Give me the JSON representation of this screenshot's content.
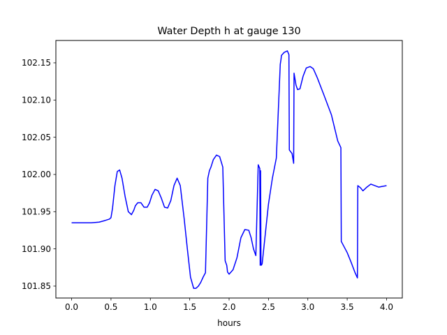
{
  "chart_data": {
    "type": "line",
    "title": "Water Depth h at gauge 130",
    "xlabel": "hours",
    "ylabel": "",
    "xlim": [
      -0.2,
      4.2
    ],
    "ylim": [
      101.834,
      102.18
    ],
    "grid": false,
    "line_color": "#0000ff",
    "x_ticks": [
      {
        "value": 0.0,
        "label": "0.0"
      },
      {
        "value": 0.5,
        "label": "0.5"
      },
      {
        "value": 1.0,
        "label": "1.0"
      },
      {
        "value": 1.5,
        "label": "1.5"
      },
      {
        "value": 2.0,
        "label": "2.0"
      },
      {
        "value": 2.5,
        "label": "2.5"
      },
      {
        "value": 3.0,
        "label": "3.0"
      },
      {
        "value": 3.5,
        "label": "3.5"
      },
      {
        "value": 4.0,
        "label": "4.0"
      }
    ],
    "y_ticks": [
      {
        "value": 101.85,
        "label": "101.85"
      },
      {
        "value": 101.9,
        "label": "101.90"
      },
      {
        "value": 101.95,
        "label": "101.95"
      },
      {
        "value": 102.0,
        "label": "102.00"
      },
      {
        "value": 102.05,
        "label": "102.05"
      },
      {
        "value": 102.1,
        "label": "102.10"
      },
      {
        "value": 102.15,
        "label": "102.15"
      }
    ],
    "series": [
      {
        "x": [
          0.0,
          0.1,
          0.25,
          0.35,
          0.42,
          0.48,
          0.5,
          0.52,
          0.55,
          0.58,
          0.61,
          0.64,
          0.68,
          0.72,
          0.76,
          0.79,
          0.81,
          0.84,
          0.88,
          0.92,
          0.96,
          0.99,
          1.02,
          1.06,
          1.1,
          1.14,
          1.18,
          1.22,
          1.26,
          1.3,
          1.34,
          1.38,
          1.43,
          1.47,
          1.51,
          1.55,
          1.58,
          1.61,
          1.64,
          1.67,
          1.7,
          1.73,
          1.74,
          1.75,
          1.77,
          1.8,
          1.84,
          1.88,
          1.92,
          1.95,
          1.97,
          1.975,
          1.98,
          2.0,
          2.05,
          2.1,
          2.15,
          2.2,
          2.25,
          2.28,
          2.31,
          2.34,
          2.37,
          2.39,
          2.395,
          2.4,
          2.405,
          2.41,
          2.42,
          2.45,
          2.5,
          2.55,
          2.6,
          2.65,
          2.66,
          2.665,
          2.7,
          2.74,
          2.76,
          2.765,
          2.8,
          2.82,
          2.825,
          2.85,
          2.87,
          2.9,
          2.94,
          2.98,
          3.03,
          3.07,
          3.12,
          3.2,
          3.3,
          3.38,
          3.42,
          3.425,
          3.5,
          3.55,
          3.6,
          3.63,
          3.635,
          3.67,
          3.7,
          3.75,
          3.8,
          3.85,
          3.9,
          3.95,
          4.0
        ],
        "y": [
          101.935,
          101.935,
          101.935,
          101.936,
          101.938,
          101.94,
          101.942,
          101.955,
          101.985,
          102.004,
          102.006,
          101.995,
          101.97,
          101.95,
          101.946,
          101.952,
          101.958,
          101.962,
          101.962,
          101.956,
          101.956,
          101.962,
          101.972,
          101.98,
          101.978,
          101.968,
          101.956,
          101.955,
          101.965,
          101.985,
          101.995,
          101.985,
          101.94,
          101.9,
          101.862,
          101.847,
          101.847,
          101.85,
          101.855,
          101.862,
          101.868,
          101.995,
          102.0,
          102.005,
          102.01,
          102.02,
          102.026,
          102.024,
          102.01,
          101.884,
          101.878,
          101.874,
          101.869,
          101.866,
          101.872,
          101.888,
          101.915,
          101.926,
          101.925,
          101.915,
          101.9,
          101.891,
          102.013,
          102.008,
          101.878,
          102.005,
          101.88,
          101.878,
          101.88,
          101.91,
          101.96,
          101.995,
          102.022,
          102.148,
          102.155,
          102.16,
          102.164,
          102.166,
          102.161,
          102.033,
          102.028,
          102.015,
          102.136,
          102.12,
          102.114,
          102.115,
          102.132,
          102.143,
          102.145,
          102.142,
          102.13,
          102.108,
          102.08,
          102.045,
          102.036,
          101.91,
          101.895,
          101.882,
          101.868,
          101.861,
          101.985,
          101.982,
          101.978,
          101.983,
          101.987,
          101.985,
          101.983,
          101.984,
          101.985
        ]
      }
    ]
  }
}
